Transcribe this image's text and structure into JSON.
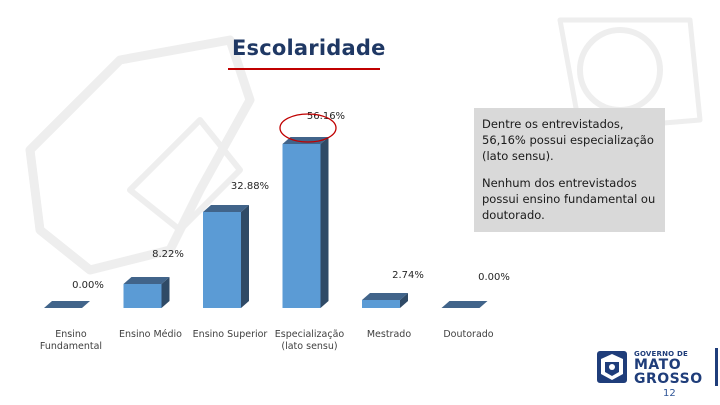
{
  "slide": {
    "title": "Escolaridade",
    "page_number": "12"
  },
  "callout": {
    "paragraph1": "Dentre os entrevistados, 56,16% possui especialização (lato sensu).",
    "paragraph2": "Nenhum dos entrevistados possui ensino fundamental ou doutorado."
  },
  "logo": {
    "line1": "GOVERNO DE",
    "line2": "MATO",
    "line3": "GROSSO"
  },
  "colors": {
    "bar_front": "#5b9bd5",
    "bar_side": "#2f4a66",
    "bar_top": "#41648a",
    "highlight_circle": "#c00000",
    "title": "#1f3864"
  },
  "chart_data": {
    "type": "bar",
    "style": "3d-column",
    "categories": [
      "Ensino Fundamental",
      "Ensino Médio",
      "Ensino Superior",
      "Especialização (lato sensu)",
      "Mestrado",
      "Doutorado"
    ],
    "category_labels": [
      [
        "Ensino",
        "Fundamental"
      ],
      [
        "Ensino Médio"
      ],
      [
        "Ensino Superior"
      ],
      [
        "Especialização",
        "(lato sensu)"
      ],
      [
        "Mestrado"
      ],
      [
        "Doutorado"
      ]
    ],
    "values": [
      0.0,
      8.22,
      32.88,
      56.16,
      2.74,
      0.0
    ],
    "data_labels": [
      "0.00%",
      "8.22%",
      "32.88%",
      "56.16%",
      "2.74%",
      "0.00%"
    ],
    "highlighted_category": "Especialização (lato sensu)",
    "ylim": [
      0,
      60
    ],
    "grid": false,
    "legend": "none"
  }
}
